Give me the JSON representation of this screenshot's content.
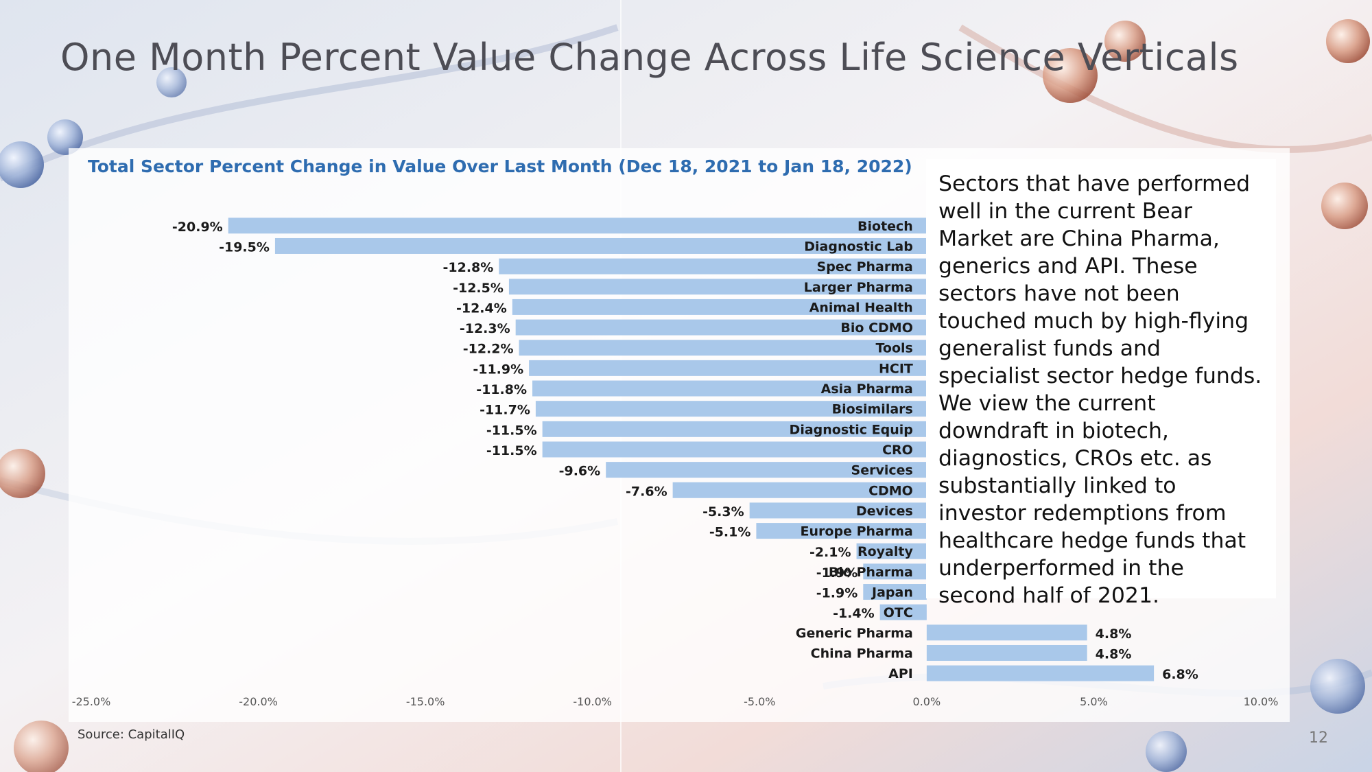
{
  "slide": {
    "title": "One Month Percent Value Change Across Life Science Verticals",
    "source": "Source: CapitalIQ",
    "page_number": "12",
    "commentary": "Sectors that have performed well in the current Bear Market are China Pharma, generics and API. These sectors have not been touched much by high-flying generalist funds and specialist sector hedge funds. We view the current downdraft in biotech, diagnostics, CROs etc. as substantially linked to investor redemptions from healthcare hedge funds that underperformed in the second half of 2021."
  },
  "colors": {
    "bar": "#a9c8ea",
    "title": "#2e6cb0"
  },
  "chart_data": {
    "type": "bar",
    "orientation": "horizontal",
    "title": "Total Sector Percent Change in Value Over Last Month (Dec 18, 2021 to Jan 18, 2022)",
    "xlim": [
      -25,
      10
    ],
    "xticks": [
      -25,
      -20,
      -15,
      -10,
      -5,
      0,
      5,
      10
    ],
    "xtick_labels": [
      "-25.0%",
      "-20.0%",
      "-15.0%",
      "-10.0%",
      "-5.0%",
      "0.0%",
      "5.0%",
      "10.0%"
    ],
    "categories": [
      "Biotech",
      "Diagnostic Lab",
      "Spec Pharma",
      "Larger Pharma",
      "Animal Health",
      "Bio CDMO",
      "Tools",
      "HCIT",
      "Asia Pharma",
      "Biosimilars",
      "Diagnostic Equip",
      "CRO",
      "Services",
      "CDMO",
      "Devices",
      "Europe Pharma",
      "Royalty",
      "Bio Pharma",
      "Japan",
      "OTC",
      "Generic Pharma",
      "China Pharma",
      "API"
    ],
    "values": [
      -20.9,
      -19.5,
      -12.8,
      -12.5,
      -12.4,
      -12.3,
      -12.2,
      -11.9,
      -11.8,
      -11.7,
      -11.5,
      -11.5,
      -9.6,
      -7.6,
      -5.3,
      -5.1,
      -2.1,
      -1.9,
      -1.9,
      -1.4,
      4.8,
      4.8,
      6.8
    ],
    "value_labels": [
      "-20.9%",
      "-19.5%",
      "-12.8%",
      "-12.5%",
      "-12.4%",
      "-12.3%",
      "-12.2%",
      "-11.9%",
      "-11.8%",
      "-11.7%",
      "-11.5%",
      "-11.5%",
      "-9.6%",
      "-7.6%",
      "-5.3%",
      "-5.1%",
      "-2.1%",
      "-1.9%",
      "-1.9%",
      "-1.4%",
      "4.8%",
      "4.8%",
      "6.8%"
    ],
    "legend": "none",
    "grid": false
  }
}
